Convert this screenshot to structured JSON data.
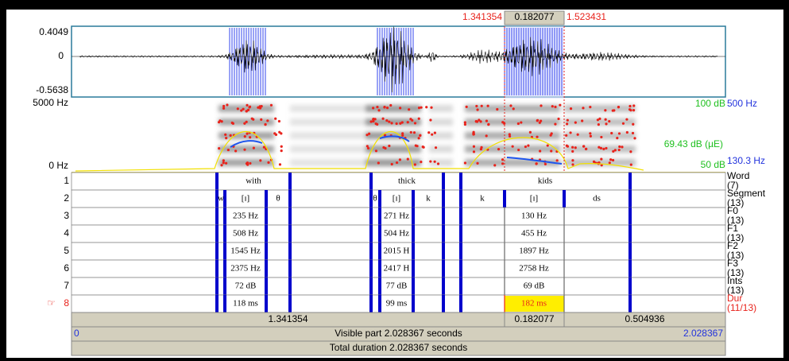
{
  "selection": {
    "start": "1.341354",
    "duration": "0.182077",
    "end": "1.523431"
  },
  "waveform": {
    "max": "0.4049",
    "zero": "0",
    "min": "-0.5638"
  },
  "spectrogram": {
    "top": "5000 Hz",
    "bottom": "0 Hz",
    "intensity_top": "100 dB",
    "pitch_top": "500 Hz",
    "intensity_cursor": "69.43 dB (µE)",
    "intensity_bottom": "50 dB",
    "pitch_bottom": "130.3 Hz"
  },
  "current_tier_marker": "☞",
  "tiers": [
    {
      "number": "1",
      "name": "Word",
      "count": "(7)",
      "intervals": [
        "with",
        "thick",
        "kids"
      ]
    },
    {
      "number": "2",
      "name": "Segment",
      "count": "(13)",
      "intervals": [
        "w",
        "[ɪ]",
        "θ",
        "θ",
        "[ɪ]",
        "k",
        "k",
        "[ɪ]",
        "ds"
      ]
    },
    {
      "number": "3",
      "name": "F0",
      "count": "(13)",
      "intervals": [
        "235 Hz",
        "271 Hz",
        "130 Hz"
      ]
    },
    {
      "number": "4",
      "name": "F1",
      "count": "(13)",
      "intervals": [
        "508 Hz",
        "504 Hz",
        "455 Hz"
      ]
    },
    {
      "number": "5",
      "name": "F2",
      "count": "(13)",
      "intervals": [
        "1545 Hz",
        "2015 H",
        "1897 Hz"
      ]
    },
    {
      "number": "6",
      "name": "F3",
      "count": "(13)",
      "intervals": [
        "2375 Hz",
        "2417 H",
        "2758 Hz"
      ]
    },
    {
      "number": "7",
      "name": "Ints",
      "count": "(13)",
      "intervals": [
        "72 dB",
        "77 dB",
        "69 dB"
      ]
    },
    {
      "number": "8",
      "name": "Dur",
      "count": "(11/13)",
      "intervals": [
        "118 ms",
        "99 ms",
        "182 ms"
      ]
    }
  ],
  "footer": {
    "before": "1.341354",
    "selection": "0.182077",
    "after": "0.504936",
    "visible_start": "0",
    "visible": "Visible part 2.028367 seconds",
    "visible_end": "2.028367",
    "total": "Total duration 2.028367 seconds"
  }
}
